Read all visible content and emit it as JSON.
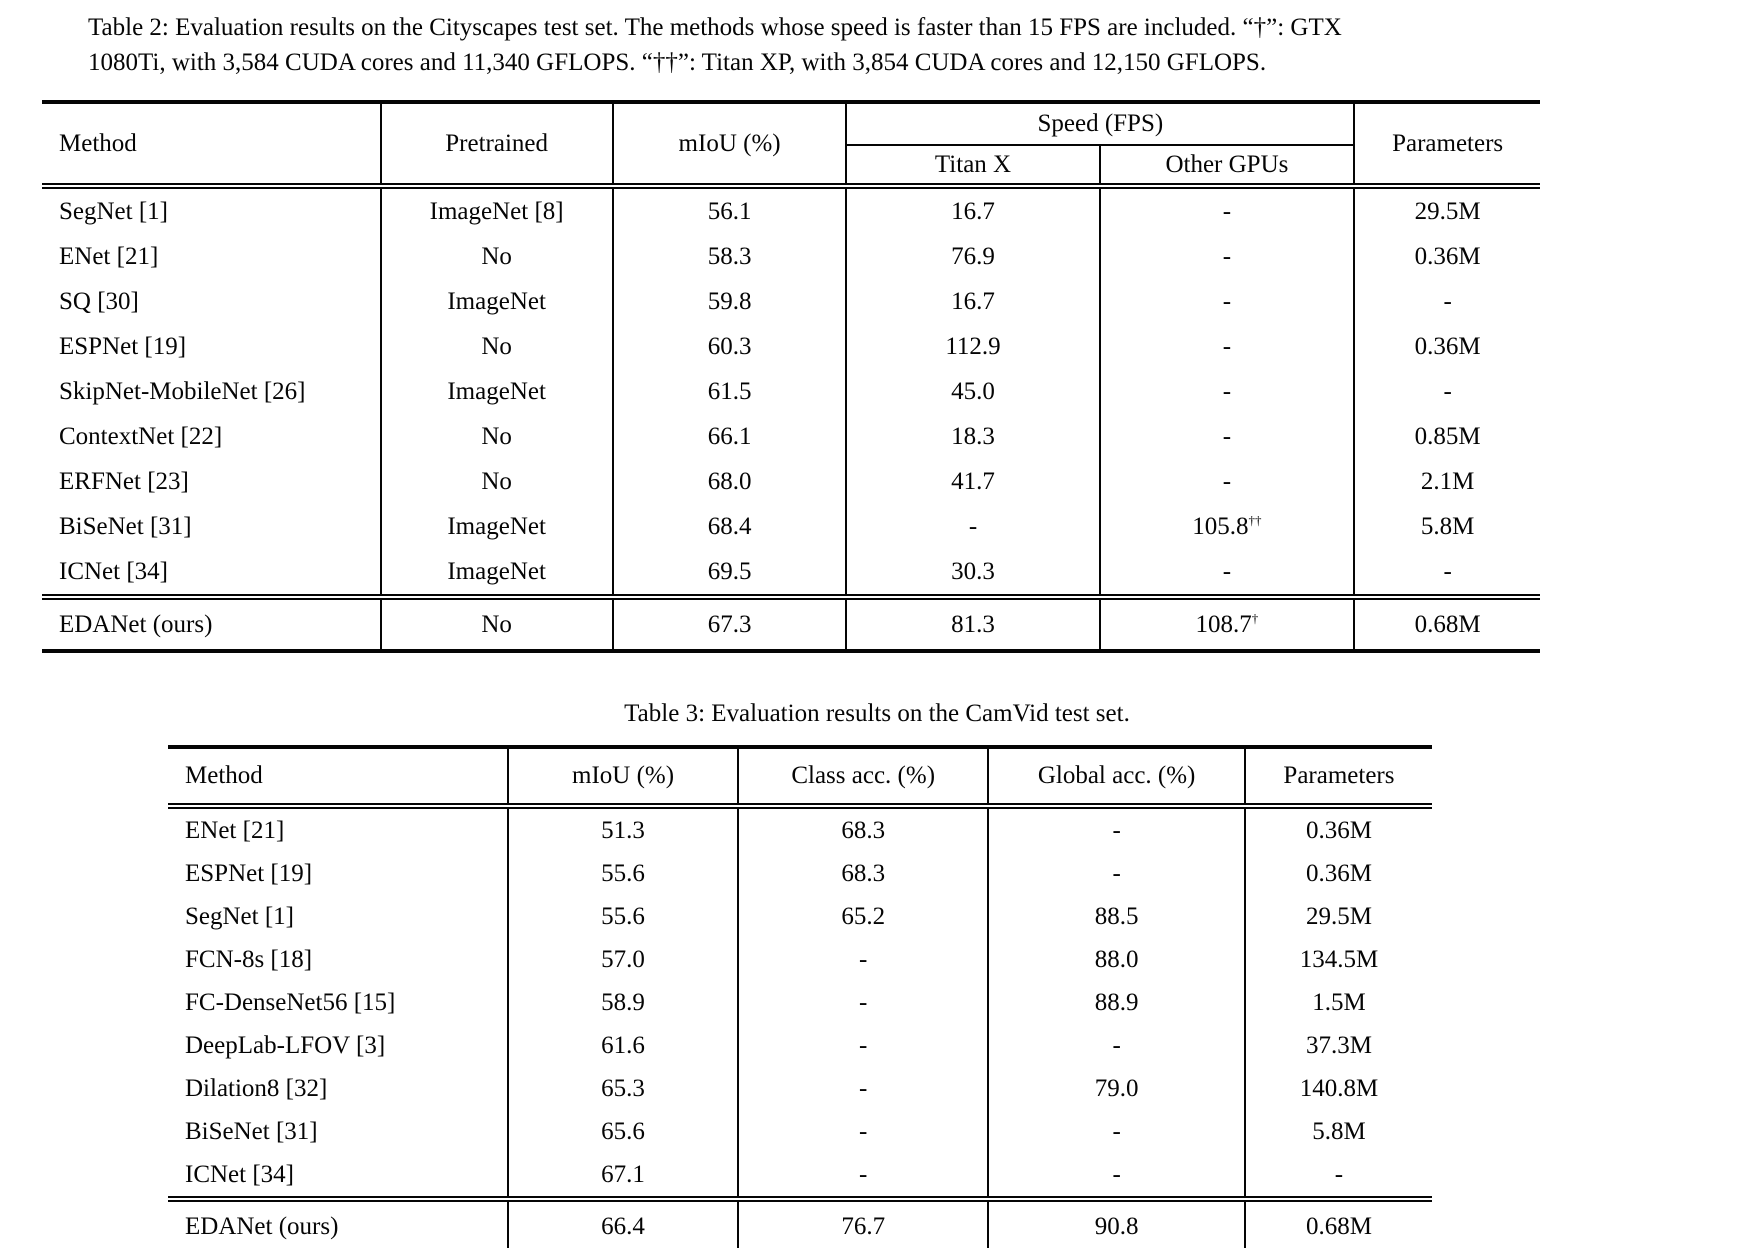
{
  "page": {
    "background": "#ffffff",
    "text_color": "#050505"
  },
  "table2": {
    "caption_line1": "Table 2: Evaluation results on the Cityscapes test set. The methods whose speed is faster than 15 FPS are included.  “†”: GTX",
    "caption_line2": "1080Ti, with 3,584 CUDA cores and 11,340 GFLOPS. “††”: Titan XP, with 3,854 CUDA cores and 12,150 GFLOPS.",
    "headers": {
      "method": "Method",
      "pretrained": "Pretrained",
      "miou": "mIoU (%)",
      "speed_group": "Speed (FPS)",
      "titan_x": "Titan X",
      "other_gpus": "Other GPUs",
      "parameters": "Parameters"
    },
    "rows": [
      [
        "SegNet [1]",
        "ImageNet [8]",
        "56.1",
        "16.7",
        "-",
        "29.5M"
      ],
      [
        "ENet [21]",
        "No",
        "58.3",
        "76.9",
        "-",
        "0.36M"
      ],
      [
        "SQ [30]",
        "ImageNet",
        "59.8",
        "16.7",
        "-",
        "-"
      ],
      [
        "ESPNet [19]",
        "No",
        "60.3",
        "112.9",
        "-",
        "0.36M"
      ],
      [
        "SkipNet-MobileNet [26]",
        "ImageNet",
        "61.5",
        "45.0",
        "-",
        "-"
      ],
      [
        "ContextNet [22]",
        "No",
        "66.1",
        "18.3",
        "-",
        "0.85M"
      ],
      [
        "ERFNet [23]",
        "No",
        "68.0",
        "41.7",
        "-",
        "2.1M"
      ],
      [
        "BiSeNet [31]",
        "ImageNet",
        "68.4",
        "-",
        {
          "v": "105.8",
          "sup": "††"
        },
        "5.8M"
      ],
      [
        "ICNet [34]",
        "ImageNet",
        "69.5",
        "30.3",
        "-",
        "-"
      ]
    ],
    "final_rows": [
      [
        "EDANet (ours)",
        "No",
        "67.3",
        "81.3",
        {
          "v": "108.7",
          "sup": "†"
        },
        "0.68M"
      ]
    ]
  },
  "table3": {
    "caption": "Table 3: Evaluation results on the CamVid test set.",
    "headers": {
      "method": "Method",
      "miou": "mIoU (%)",
      "class_acc": "Class acc. (%)",
      "global_acc": "Global acc. (%)",
      "parameters": "Parameters"
    },
    "rows": [
      [
        "ENet [21]",
        "51.3",
        "68.3",
        "-",
        "0.36M"
      ],
      [
        "ESPNet [19]",
        "55.6",
        "68.3",
        "-",
        "0.36M"
      ],
      [
        "SegNet [1]",
        "55.6",
        "65.2",
        "88.5",
        "29.5M"
      ],
      [
        "FCN-8s [18]",
        "57.0",
        "-",
        "88.0",
        "134.5M"
      ],
      [
        "FC-DenseNet56 [15]",
        "58.9",
        "-",
        "88.9",
        "1.5M"
      ],
      [
        "DeepLab-LFOV [3]",
        "61.6",
        "-",
        "-",
        "37.3M"
      ],
      [
        "Dilation8 [32]",
        "65.3",
        "-",
        "79.0",
        "140.8M"
      ],
      [
        "BiSeNet [31]",
        "65.6",
        "-",
        "-",
        "5.8M"
      ],
      [
        "ICNet [34]",
        "67.1",
        "-",
        "-",
        "-"
      ]
    ],
    "final_rows": [
      [
        "EDANet (ours)",
        "66.4",
        "76.7",
        "90.8",
        "0.68M"
      ]
    ]
  }
}
